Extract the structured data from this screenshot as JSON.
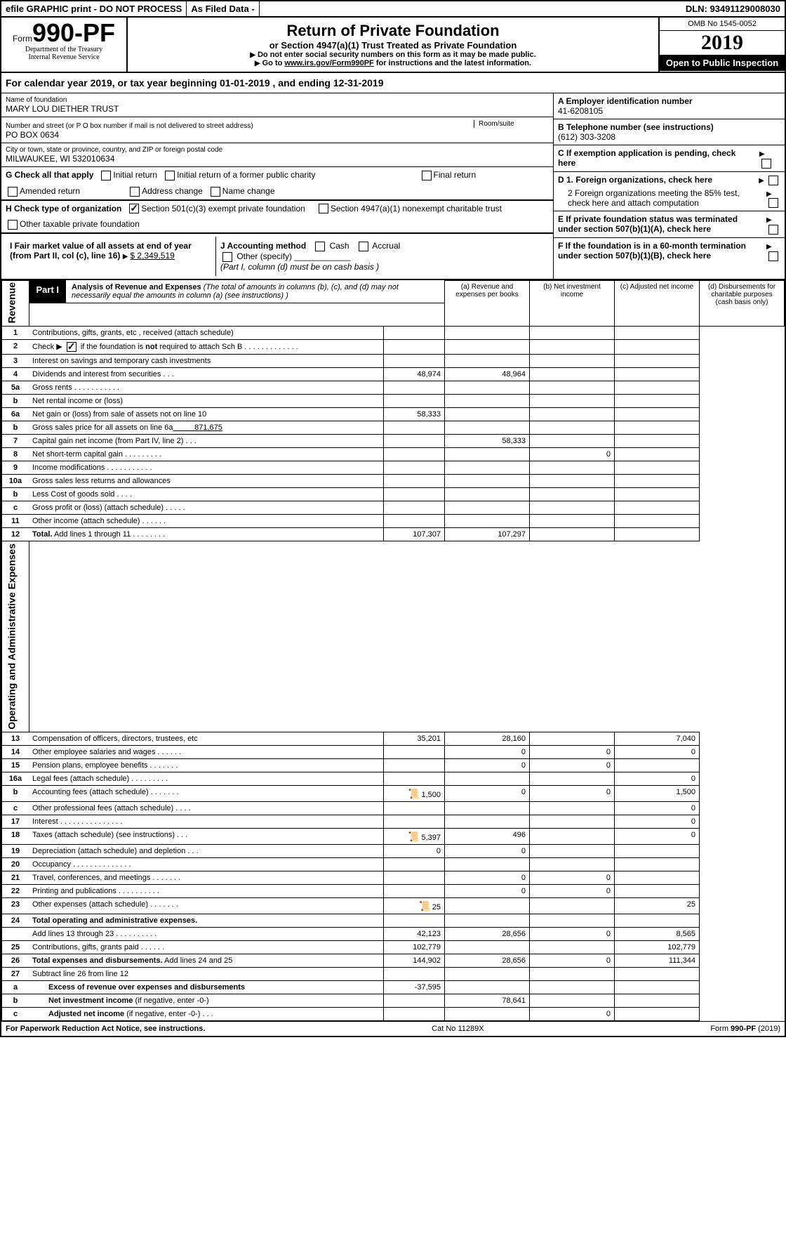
{
  "topBar": {
    "efile": "efile GRAPHIC print - DO NOT PROCESS",
    "asFiled": "As Filed Data -",
    "dln": "DLN: 93491129008030"
  },
  "header": {
    "formPrefix": "Form",
    "formNumber": "990-PF",
    "dept1": "Department of the Treasury",
    "dept2": "Internal Revenue Service",
    "title": "Return of Private Foundation",
    "subtitle": "or Section 4947(a)(1) Trust Treated as Private Foundation",
    "instruct1": "Do not enter social security numbers on this form as it may be made public.",
    "instruct2p": "Go to ",
    "instructLink": "www.irs.gov/Form990PF",
    "instruct2s": " for instructions and the latest information.",
    "omb": "OMB No 1545-0052",
    "year": "2019",
    "open": "Open to Public Inspection"
  },
  "calYear": {
    "prefix": "For calendar year 2019, or tax year beginning ",
    "begin": "01-01-2019",
    "mid": " , and ending ",
    "end": "12-31-2019"
  },
  "info": {
    "nameLabel": "Name of foundation",
    "name": "MARY LOU DIETHER TRUST",
    "addrLabel": "Number and street (or P O  box number if mail is not delivered to street address)",
    "addr": "PO BOX 0634",
    "roomLabel": "Room/suite",
    "cityLabel": "City or town, state or province, country, and ZIP or foreign postal code",
    "city": "MILWAUKEE, WI  532010634",
    "einLabel": "A Employer identification number",
    "ein": "41-6208105",
    "phoneLabel": "B Telephone number (see instructions)",
    "phone": "(612) 303-3208",
    "cLabel": "C If exemption application is pending, check here",
    "d1": "D 1. Foreign organizations, check here",
    "d2": "2 Foreign organizations meeting the 85% test, check here and attach computation",
    "eLabel": "E   If private foundation status was terminated under section 507(b)(1)(A), check here",
    "fLabel": "F   If the foundation is in a 60-month termination under section 507(b)(1)(B), check here"
  },
  "sectionG": {
    "label": "G Check all that apply",
    "opts": {
      "initial": "Initial return",
      "initialFormer": "Initial return of a former public charity",
      "final": "Final return",
      "amended": "Amended return",
      "address": "Address change",
      "name": "Name change"
    }
  },
  "sectionH": {
    "label": "H Check type of organization",
    "opt1": "Section 501(c)(3) exempt private foundation",
    "opt2": "Section 4947(a)(1) nonexempt charitable trust",
    "opt3": "Other taxable private foundation"
  },
  "sectionI": {
    "label": "I Fair market value of all assets at end of year (from Part II, col  (c), line 16)",
    "value": "$  2,349,519"
  },
  "sectionJ": {
    "label": "J Accounting method",
    "cash": "Cash",
    "accrual": "Accrual",
    "other": "Other (specify)",
    "note": "(Part I, column (d) must be on cash basis )"
  },
  "part1": {
    "label": "Part I",
    "title": "Analysis of Revenue and Expenses",
    "note": " (The total of amounts in columns (b), (c), and (d) may not necessarily equal the amounts in column (a) (see instructions) )"
  },
  "columns": {
    "a": "(a)   Revenue and expenses per books",
    "b": "(b)   Net investment income",
    "c": "(c)   Adjusted net income",
    "d": "(d)   Disbursements for charitable purposes (cash basis only)"
  },
  "sideLabels": {
    "revenue": "Revenue",
    "expenses": "Operating and Administrative Expenses"
  },
  "rows": [
    {
      "n": "1",
      "d": "",
      "a": "",
      "b": "",
      "c": ""
    },
    {
      "n": "2",
      "d": "",
      "a": "",
      "b": "",
      "c": "",
      "checked": true,
      "bold": "not"
    },
    {
      "n": "3",
      "d": "",
      "a": "",
      "b": "",
      "c": ""
    },
    {
      "n": "4",
      "d": "",
      "a": "48,974",
      "b": "48,964",
      "c": ""
    },
    {
      "n": "5a",
      "d": "",
      "a": "",
      "b": "",
      "c": ""
    },
    {
      "n": "b",
      "d": "",
      "a": "",
      "b": "",
      "c": ""
    },
    {
      "n": "6a",
      "d": "",
      "a": "58,333",
      "b": "",
      "c": ""
    },
    {
      "n": "b",
      "d": "",
      "a": "",
      "b": "",
      "c": ""
    },
    {
      "n": "7",
      "d": "",
      "a": "",
      "b": "58,333",
      "c": ""
    },
    {
      "n": "8",
      "d": "",
      "a": "",
      "b": "",
      "c": "0"
    },
    {
      "n": "9",
      "d": "",
      "a": "",
      "b": "",
      "c": ""
    },
    {
      "n": "10a",
      "d": "",
      "a": "",
      "b": "",
      "c": ""
    },
    {
      "n": "b",
      "d": "",
      "a": "",
      "b": "",
      "c": ""
    },
    {
      "n": "c",
      "d": "",
      "a": "",
      "b": "",
      "c": ""
    },
    {
      "n": "11",
      "d": "",
      "a": "",
      "b": "",
      "c": ""
    },
    {
      "n": "12",
      "d": "",
      "a": "107,307",
      "b": "107,297",
      "c": "",
      "isBold": true
    },
    {
      "n": "13",
      "d": "7,040",
      "a": "35,201",
      "b": "28,160",
      "c": ""
    },
    {
      "n": "14",
      "d": "0",
      "a": "",
      "b": "0",
      "c": "0"
    },
    {
      "n": "15",
      "d": "",
      "a": "",
      "b": "0",
      "c": "0"
    },
    {
      "n": "16a",
      "d": "0",
      "a": "",
      "b": "",
      "c": ""
    },
    {
      "n": "b",
      "d": "1,500",
      "a": "1,500",
      "b": "0",
      "c": "0",
      "icon": true
    },
    {
      "n": "c",
      "d": "0",
      "a": "",
      "b": "",
      "c": ""
    },
    {
      "n": "17",
      "d": "0",
      "a": "",
      "b": "",
      "c": ""
    },
    {
      "n": "18",
      "d": "0",
      "a": "5,397",
      "b": "496",
      "c": "",
      "icon": true
    },
    {
      "n": "19",
      "d": "",
      "a": "0",
      "b": "0",
      "c": ""
    },
    {
      "n": "20",
      "d": "",
      "a": "",
      "b": "",
      "c": ""
    },
    {
      "n": "21",
      "d": "",
      "a": "",
      "b": "0",
      "c": "0"
    },
    {
      "n": "22",
      "d": "",
      "a": "",
      "b": "0",
      "c": "0"
    },
    {
      "n": "23",
      "d": "25",
      "a": "25",
      "b": "",
      "c": "",
      "icon": true
    },
    {
      "n": "24",
      "d": "",
      "a": "",
      "b": "",
      "c": "",
      "isBold": true,
      "noBorderBottom": true
    },
    {
      "n": "",
      "d": "8,565",
      "a": "42,123",
      "b": "28,656",
      "c": "0"
    },
    {
      "n": "25",
      "d": "102,779",
      "a": "102,779",
      "b": "",
      "c": ""
    },
    {
      "n": "26",
      "d": "111,344",
      "a": "144,902",
      "b": "28,656",
      "c": "0",
      "isBold": true
    },
    {
      "n": "27",
      "d": "",
      "a": "",
      "b": "",
      "c": ""
    },
    {
      "n": "a",
      "d": "",
      "a": "-37,595",
      "b": "",
      "c": "",
      "isBold": true,
      "indent": true
    },
    {
      "n": "b",
      "d": "",
      "a": "",
      "b": "78,641",
      "c": "",
      "isBold": true,
      "indent": true
    },
    {
      "n": "c",
      "d": "",
      "a": "",
      "b": "",
      "c": "0",
      "isBold": true,
      "indent": true
    }
  ],
  "footer": {
    "left": "For Paperwork Reduction Act Notice, see instructions.",
    "mid": "Cat  No  11289X",
    "right": "Form 990-PF (2019)"
  }
}
